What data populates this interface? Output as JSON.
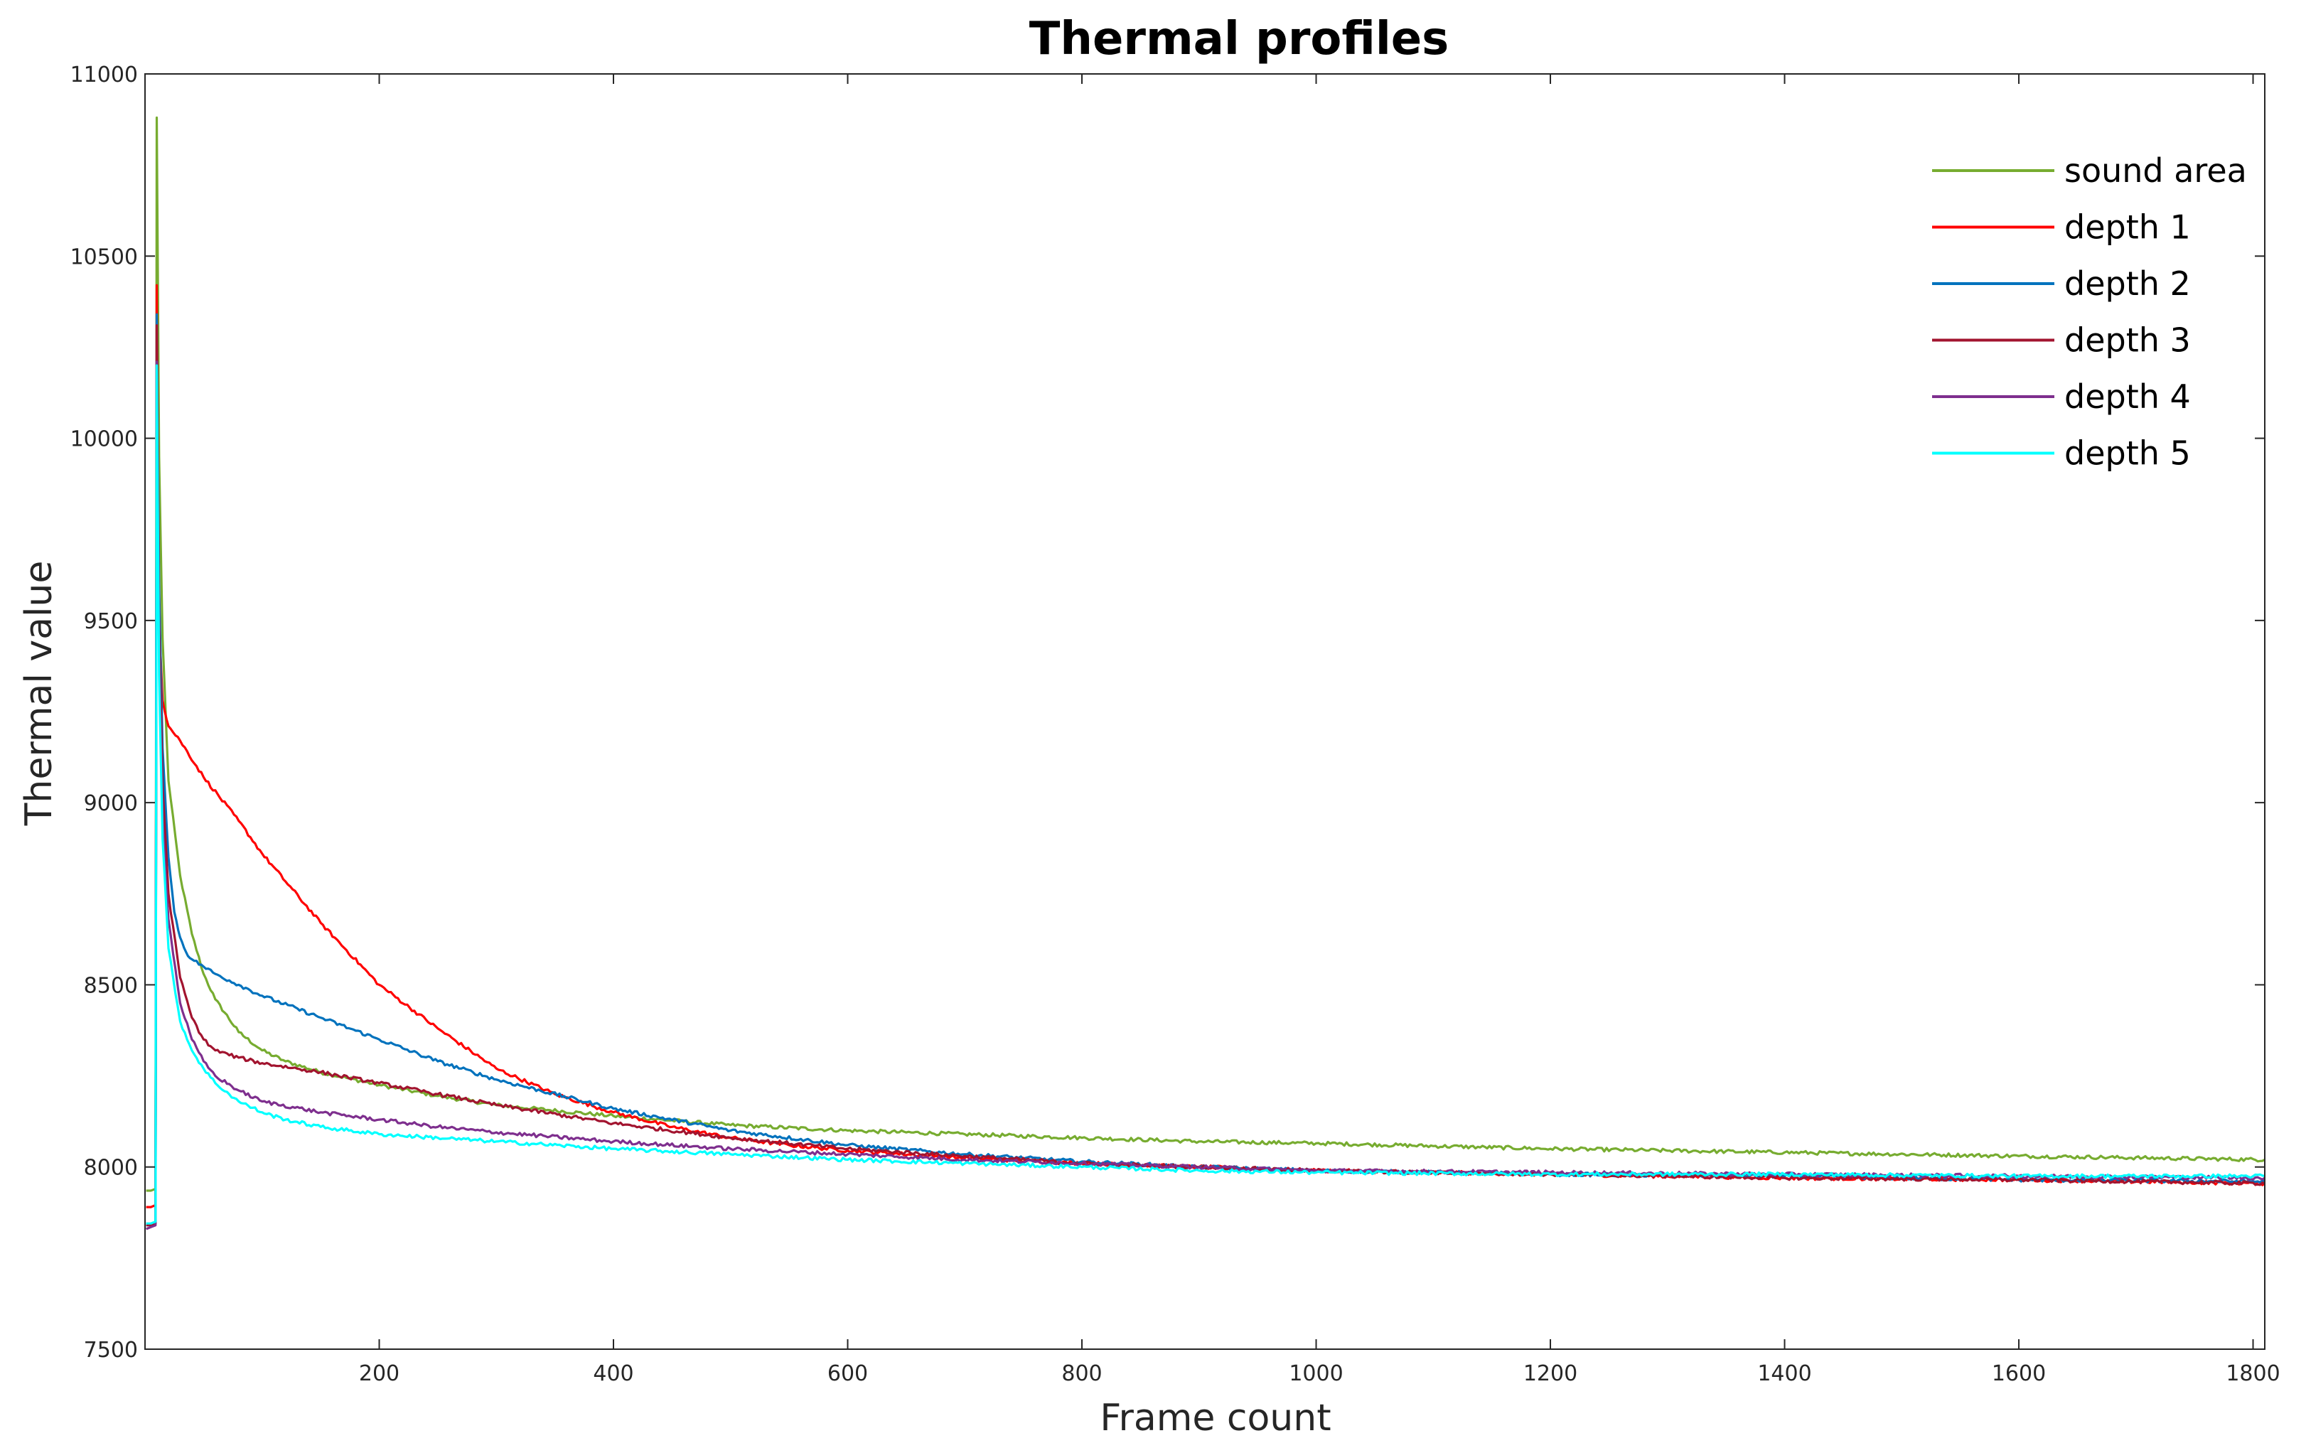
{
  "chart_data": {
    "type": "line",
    "title": "Thermal profiles",
    "xlabel": "Frame count",
    "ylabel": "Thermal value",
    "xlim": [
      0,
      1810
    ],
    "ylim": [
      7500,
      11000
    ],
    "xticks": [
      200,
      400,
      600,
      800,
      1000,
      1200,
      1400,
      1600,
      1800
    ],
    "yticks": [
      7500,
      8000,
      8500,
      9000,
      9500,
      10000,
      10500,
      11000
    ],
    "grid": false,
    "legend_position": "top-right",
    "series": [
      {
        "name": "sound area",
        "color": "#77AC30",
        "x": [
          1,
          5,
          9,
          10,
          12,
          15,
          20,
          30,
          40,
          50,
          60,
          80,
          100,
          120,
          150,
          200,
          250,
          300,
          400,
          500,
          600,
          700,
          800,
          900,
          1000,
          1200,
          1400,
          1600,
          1810
        ],
        "y": [
          7935,
          7935,
          7940,
          10880,
          9950,
          9450,
          9060,
          8800,
          8640,
          8530,
          8460,
          8370,
          8320,
          8290,
          8260,
          8225,
          8195,
          8170,
          8140,
          8115,
          8100,
          8090,
          8080,
          8070,
          8065,
          8050,
          8040,
          8030,
          8020
        ]
      },
      {
        "name": "depth 1",
        "color": "#FF0000",
        "x": [
          1,
          5,
          9,
          10,
          12,
          15,
          20,
          30,
          50,
          80,
          100,
          150,
          200,
          250,
          300,
          350,
          400,
          450,
          500,
          550,
          600,
          700,
          800,
          900,
          1000,
          1200,
          1400,
          1600,
          1810
        ],
        "y": [
          7890,
          7890,
          7895,
          10420,
          9500,
          9280,
          9210,
          9170,
          9070,
          8950,
          8860,
          8670,
          8500,
          8380,
          8270,
          8200,
          8150,
          8110,
          8080,
          8060,
          8045,
          8025,
          8010,
          8000,
          7990,
          7980,
          7970,
          7965,
          7955
        ]
      },
      {
        "name": "depth 2",
        "color": "#0072BD",
        "x": [
          1,
          5,
          9,
          10,
          12,
          15,
          20,
          25,
          30,
          35,
          40,
          50,
          60,
          80,
          100,
          150,
          200,
          250,
          300,
          400,
          500,
          600,
          700,
          800,
          900,
          1000,
          1200,
          1400,
          1600,
          1810
        ],
        "y": [
          7840,
          7840,
          7845,
          10340,
          9600,
          9150,
          8850,
          8700,
          8630,
          8590,
          8570,
          8550,
          8530,
          8500,
          8470,
          8410,
          8350,
          8290,
          8240,
          8160,
          8100,
          8060,
          8035,
          8015,
          8000,
          7990,
          7980,
          7975,
          7965,
          7960
        ]
      },
      {
        "name": "depth 3",
        "color": "#A2142F",
        "x": [
          1,
          5,
          9,
          10,
          12,
          15,
          20,
          30,
          40,
          50,
          60,
          80,
          100,
          150,
          200,
          250,
          300,
          400,
          500,
          600,
          700,
          800,
          900,
          1000,
          1200,
          1400,
          1600,
          1810
        ],
        "y": [
          7840,
          7840,
          7845,
          10310,
          9500,
          9050,
          8750,
          8520,
          8410,
          8350,
          8320,
          8300,
          8285,
          8260,
          8230,
          8200,
          8170,
          8120,
          8080,
          8050,
          8030,
          8010,
          8000,
          7990,
          7980,
          7970,
          7965,
          7955
        ]
      },
      {
        "name": "depth 4",
        "color": "#7E2F8E",
        "x": [
          1,
          5,
          9,
          10,
          12,
          15,
          20,
          30,
          40,
          50,
          60,
          80,
          100,
          150,
          200,
          250,
          300,
          400,
          500,
          600,
          700,
          800,
          900,
          1000,
          1200,
          1400,
          1600,
          1810
        ],
        "y": [
          7830,
          7835,
          7840,
          10210,
          9400,
          8950,
          8680,
          8450,
          8350,
          8290,
          8250,
          8210,
          8180,
          8150,
          8130,
          8110,
          8095,
          8070,
          8050,
          8035,
          8020,
          8010,
          8000,
          7990,
          7985,
          7980,
          7975,
          7970
        ]
      },
      {
        "name": "depth 5",
        "color": "#00FFFF",
        "x": [
          1,
          5,
          9,
          10,
          12,
          15,
          20,
          30,
          40,
          50,
          60,
          80,
          100,
          120,
          150,
          200,
          250,
          300,
          400,
          500,
          600,
          700,
          800,
          900,
          1000,
          1200,
          1400,
          1600,
          1810
        ],
        "y": [
          7845,
          7845,
          7850,
          10200,
          9350,
          8900,
          8600,
          8400,
          8320,
          8270,
          8230,
          8180,
          8150,
          8130,
          8110,
          8090,
          8080,
          8070,
          8050,
          8035,
          8020,
          8010,
          8000,
          7990,
          7985,
          7980,
          7980,
          7975,
          7975
        ]
      }
    ]
  }
}
